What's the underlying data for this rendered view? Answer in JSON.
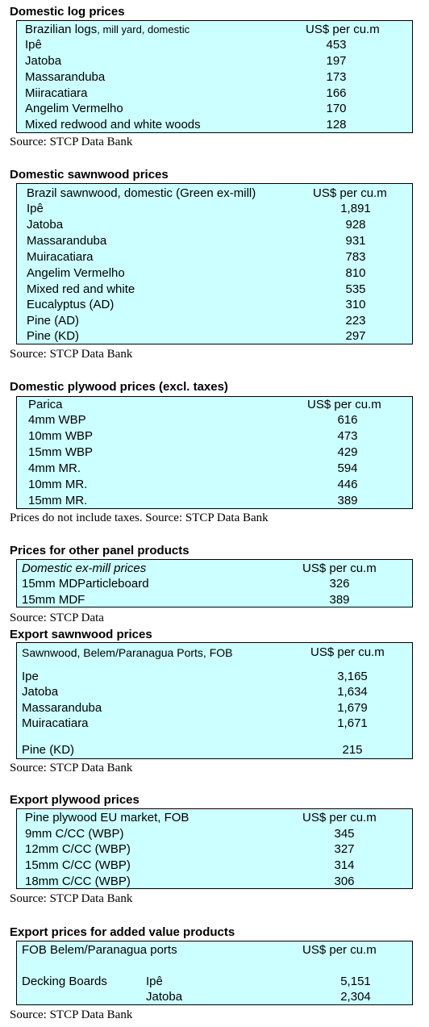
{
  "sections": {
    "s1": {
      "title": "Domestic log prices",
      "header": {
        "label_main": "Brazilian logs",
        "label_rest": ", mill yard, domestic",
        "unit": "US$ per cu.m"
      },
      "rows": [
        {
          "name": "Ipê",
          "value": "453"
        },
        {
          "name": "Jatoba",
          "value": "197"
        },
        {
          "name": "Massaranduba",
          "value": "173"
        },
        {
          "name": "Miiracatiara",
          "value": "166"
        },
        {
          "name": "Angelim Vermelho",
          "value": "170"
        },
        {
          "name": "Mixed redwood and white woods",
          "value": "128"
        }
      ],
      "source": "Source: STCP Data Bank"
    },
    "s2": {
      "title": "Domestic sawnwood prices",
      "header": {
        "label": "Brazil sawnwood, domestic (Green ex-mill)",
        "unit": "US$ per cu.m"
      },
      "rows": [
        {
          "name": "Ipê",
          "value": "1,891"
        },
        {
          "name": "Jatoba",
          "value": "928"
        },
        {
          "name": "Massaranduba",
          "value": "931"
        },
        {
          "name": "Muiracatiara",
          "value": "783"
        },
        {
          "name": "Angelim Vermelho",
          "value": "810"
        },
        {
          "name": "Mixed red and white",
          "value": "535"
        },
        {
          "name": "Eucalyptus (AD)",
          "value": "310"
        },
        {
          "name": "Pine (AD)",
          "value": "223"
        },
        {
          "name": "Pine (KD)",
          "value": "297"
        }
      ],
      "source": "Source: STCP Data Bank"
    },
    "s3": {
      "title": "Domestic plywood prices (excl. taxes)",
      "header": {
        "label": "Parica",
        "unit": "US$ per cu.m"
      },
      "rows": [
        {
          "name": "4mm WBP",
          "value": "616"
        },
        {
          "name": "10mm WBP",
          "value": "473"
        },
        {
          "name": "15mm WBP",
          "value": "429"
        },
        {
          "name": "4mm MR.",
          "value": "594"
        },
        {
          "name": "10mm MR.",
          "value": "446"
        },
        {
          "name": "15mm MR.",
          "value": "389"
        }
      ],
      "source": "Prices do not include taxes. Source: STCP Data Bank"
    },
    "s4": {
      "title": "Prices for other panel products",
      "header": {
        "label": "Domestic ex-mill prices",
        "unit": "US$ per cu.m"
      },
      "rows": [
        {
          "name": "15mm MDParticleboard",
          "value": "326"
        },
        {
          "name": "15mm MDF",
          "value": "389"
        }
      ],
      "source": "Source: STCP Data"
    },
    "s5": {
      "title": "Export sawnwood prices",
      "header": {
        "label": "Sawnwood, Belem/Paranagua Ports, FOB",
        "unit": "US$ per cu.m"
      },
      "rows": [
        {
          "name": "Ipe",
          "value": "3,165"
        },
        {
          "name": "Jatoba",
          "value": "1,634"
        },
        {
          "name": "Massaranduba",
          "value": "1,679"
        },
        {
          "name": "Muiracatiara",
          "value": "1,671"
        },
        {
          "name": "Pine (KD)",
          "value": "215"
        }
      ],
      "source": "Source: STCP Data Bank"
    },
    "s6": {
      "title": "Export plywood prices",
      "header": {
        "label": "Pine plywood EU market, FOB",
        "unit": "US$ per cu.m"
      },
      "rows": [
        {
          "name": "9mm C/CC (WBP)",
          "value": "345"
        },
        {
          "name": "12mm C/CC (WBP)",
          "value": "327"
        },
        {
          "name": "15mm C/CC (WBP)",
          "value": "314"
        },
        {
          "name": "18mm C/CC (WBP)",
          "value": "306"
        }
      ],
      "source": "Source: STCP Data Bank"
    },
    "s7": {
      "title": "Export prices for added value products",
      "header": {
        "label": "FOB Belem/Paranagua ports",
        "unit": "US$ per cu.m"
      },
      "group": "Decking Boards",
      "rows": [
        {
          "name": "Ipê",
          "value": "5,151"
        },
        {
          "name": "Jatoba",
          "value": "2,304"
        }
      ],
      "source": "Source: STCP Data Bank"
    }
  }
}
